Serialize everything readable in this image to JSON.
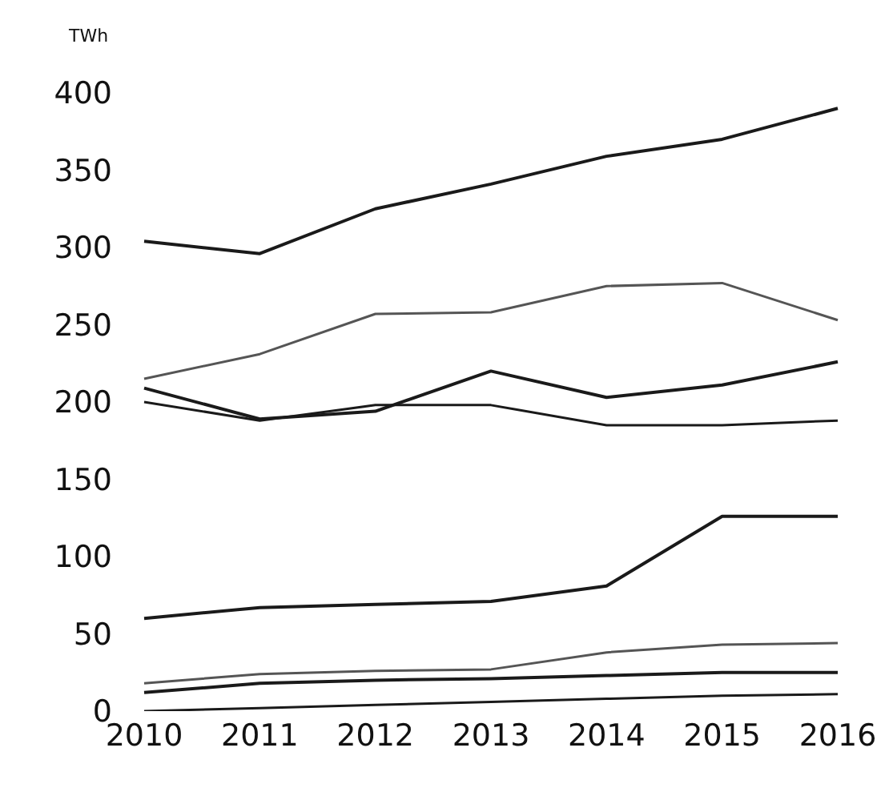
{
  "chart_data": {
    "type": "line",
    "ylabel": "TWh",
    "categories": [
      "2010",
      "2011",
      "2012",
      "2013",
      "2014",
      "2015",
      "2016"
    ],
    "ylim": [
      0,
      400
    ],
    "yticks": [
      0,
      50,
      100,
      150,
      200,
      250,
      300,
      350,
      400
    ],
    "series": [
      {
        "color": "#1a1a1a",
        "values": [
          304,
          296,
          325,
          341,
          359,
          370,
          390
        ]
      },
      {
        "color": "#555555",
        "values": [
          215,
          231,
          257,
          258,
          275,
          277,
          253
        ]
      },
      {
        "color": "#1a1a1a",
        "values": [
          209,
          189,
          194,
          220,
          203,
          211,
          226
        ]
      },
      {
        "color": "#1a1a1a",
        "values": [
          200,
          188,
          198,
          198,
          185,
          185,
          188
        ]
      },
      {
        "color": "#1a1a1a",
        "values": [
          60,
          67,
          69,
          71,
          81,
          126,
          126
        ]
      },
      {
        "color": "#555555",
        "values": [
          18,
          24,
          26,
          27,
          38,
          43,
          44
        ]
      },
      {
        "color": "#1a1a1a",
        "values": [
          12,
          18,
          20,
          21,
          23,
          25,
          25
        ]
      },
      {
        "color": "#1a1a1a",
        "values": [
          0,
          2,
          4,
          6,
          8,
          10,
          11
        ]
      }
    ]
  }
}
